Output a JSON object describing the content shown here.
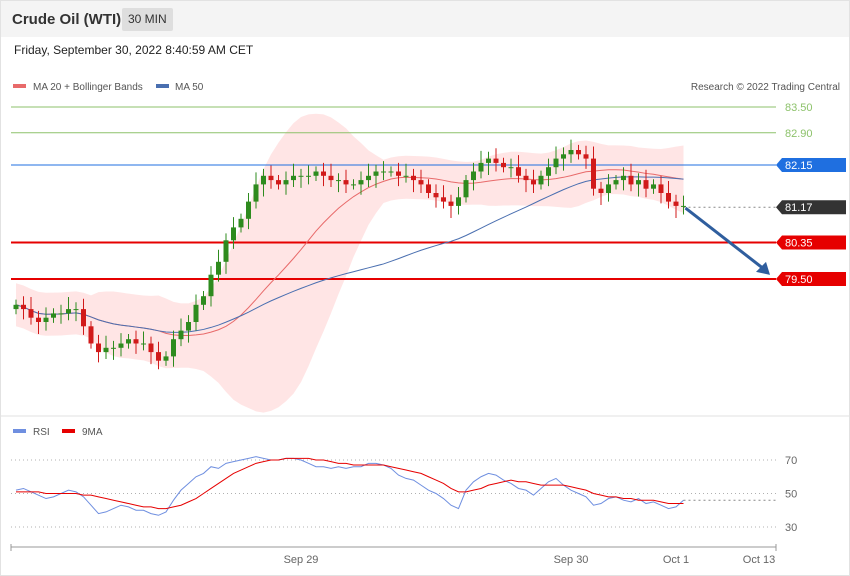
{
  "header": {
    "title": "Crude Oil (WTI)",
    "interval": "30 MIN",
    "datetime": "Friday, September 30, 2022 8:40:59 AM CET"
  },
  "legend": {
    "ma20": "MA 20 + Bollinger Bands",
    "ma50": "MA 50",
    "credit": "Research © 2022 Trading Central",
    "rsi": "RSI",
    "rsi_ma": "9MA"
  },
  "colors": {
    "up": "#2e8b1e",
    "down": "#d11a1a",
    "ma20": "#e86a6a",
    "ma50": "#4a6fb0",
    "bands": "#ffdcdc",
    "resistance": "#8dc26b",
    "pivot_blue": "#1f6fe0",
    "support_red": "#e60000",
    "last": "#333333",
    "rsi": "#6f8fe0",
    "rsi_ma": "#e60000"
  },
  "chart_data": [
    {
      "type": "candlestick",
      "y_range": [
        76.8,
        84.0
      ],
      "x_labels": [
        {
          "label": "Sep 29",
          "index": 38
        },
        {
          "label": "Sep 30",
          "index": 74
        },
        {
          "label": "Oct 1",
          "index": 88
        },
        {
          "label": "Oct 13",
          "index": 99
        }
      ],
      "levels": [
        {
          "label": "83.50",
          "value": 83.5,
          "kind": "resistance"
        },
        {
          "label": "82.90",
          "value": 82.9,
          "kind": "resistance"
        },
        {
          "label": "82.15",
          "value": 82.15,
          "kind": "pivot"
        },
        {
          "label": "81.17",
          "value": 81.17,
          "kind": "last"
        },
        {
          "label": "80.35",
          "value": 80.35,
          "kind": "support"
        },
        {
          "label": "79.50",
          "value": 79.5,
          "kind": "support"
        }
      ],
      "arrow": {
        "from_index": 89,
        "from_value": 81.15,
        "to_index": 99,
        "to_value": 79.55
      },
      "closes": [
        78.9,
        78.8,
        78.6,
        78.5,
        78.6,
        78.7,
        78.7,
        78.8,
        78.8,
        78.4,
        78.0,
        77.8,
        77.9,
        77.9,
        78.0,
        78.1,
        78.0,
        78.0,
        77.8,
        77.6,
        77.7,
        78.1,
        78.3,
        78.5,
        78.9,
        79.1,
        79.6,
        79.9,
        80.4,
        80.7,
        80.9,
        81.3,
        81.7,
        81.9,
        81.8,
        81.7,
        81.8,
        81.9,
        81.9,
        81.9,
        82.0,
        81.9,
        81.8,
        81.8,
        81.7,
        81.7,
        81.8,
        81.9,
        82.0,
        82.0,
        82.0,
        81.9,
        81.9,
        81.8,
        81.7,
        81.5,
        81.4,
        81.3,
        81.2,
        81.4,
        81.8,
        82.0,
        82.2,
        82.3,
        82.2,
        82.1,
        82.1,
        81.9,
        81.8,
        81.7,
        81.9,
        82.1,
        82.3,
        82.4,
        82.5,
        82.4,
        82.3,
        81.6,
        81.5,
        81.7,
        81.8,
        81.9,
        81.7,
        81.8,
        81.6,
        81.7,
        81.5,
        81.3,
        81.2,
        81.2
      ],
      "opens": [
        78.8,
        78.9,
        78.8,
        78.6,
        78.5,
        78.6,
        78.7,
        78.7,
        78.8,
        78.8,
        78.4,
        78.0,
        77.8,
        77.9,
        77.9,
        78.0,
        78.1,
        78.0,
        78.0,
        77.8,
        77.6,
        77.7,
        78.1,
        78.3,
        78.5,
        78.9,
        79.1,
        79.6,
        79.9,
        80.4,
        80.7,
        80.9,
        81.3,
        81.7,
        81.9,
        81.8,
        81.7,
        81.8,
        81.9,
        81.9,
        81.9,
        82.0,
        81.9,
        81.8,
        81.8,
        81.7,
        81.7,
        81.8,
        81.9,
        82.0,
        82.0,
        82.0,
        81.9,
        81.9,
        81.8,
        81.7,
        81.5,
        81.4,
        81.3,
        81.2,
        81.4,
        81.8,
        82.0,
        82.2,
        82.3,
        82.2,
        82.1,
        82.1,
        81.9,
        81.8,
        81.7,
        81.9,
        82.1,
        82.3,
        82.4,
        82.5,
        82.4,
        82.3,
        81.6,
        81.5,
        81.7,
        81.8,
        81.9,
        81.7,
        81.8,
        81.6,
        81.7,
        81.5,
        81.3,
        81.2
      ]
    },
    {
      "type": "line",
      "y_ticks": [
        70,
        50,
        30
      ],
      "y_range": [
        20,
        80
      ],
      "series": [
        {
          "name": "RSI",
          "values": [
            52,
            53,
            51,
            49,
            47,
            48,
            50,
            52,
            51,
            48,
            43,
            38,
            39,
            41,
            43,
            42,
            40,
            40,
            38,
            37,
            39,
            46,
            52,
            56,
            60,
            62,
            66,
            65,
            68,
            69,
            70,
            71,
            72,
            71,
            70,
            70,
            71,
            71,
            70,
            68,
            66,
            66,
            65,
            66,
            65,
            66,
            66,
            68,
            68,
            67,
            65,
            61,
            59,
            58,
            55,
            52,
            50,
            47,
            43,
            41,
            52,
            57,
            60,
            62,
            61,
            58,
            56,
            53,
            52,
            49,
            53,
            57,
            59,
            55,
            52,
            50,
            48,
            43,
            44,
            47,
            48,
            46,
            45,
            47,
            44,
            45,
            43,
            41,
            42,
            46
          ]
        },
        {
          "name": "9MA",
          "values": [
            51,
            51,
            51,
            51,
            50,
            50,
            50,
            50,
            50,
            49,
            49,
            48,
            47,
            46,
            45,
            44,
            43,
            42,
            42,
            41,
            41,
            42,
            43,
            45,
            47,
            50,
            53,
            56,
            59,
            62,
            64,
            66,
            68,
            69,
            70,
            70,
            71,
            71,
            71,
            71,
            70,
            70,
            69,
            68,
            68,
            67,
            67,
            67,
            67,
            67,
            66,
            65,
            64,
            63,
            62,
            60,
            58,
            56,
            53,
            51,
            51,
            52,
            53,
            55,
            56,
            57,
            58,
            57,
            57,
            56,
            55,
            55,
            55,
            55,
            54,
            53,
            52,
            50,
            49,
            48,
            48,
            47,
            47,
            46,
            46,
            46,
            45,
            44,
            44,
            44
          ]
        }
      ]
    }
  ]
}
